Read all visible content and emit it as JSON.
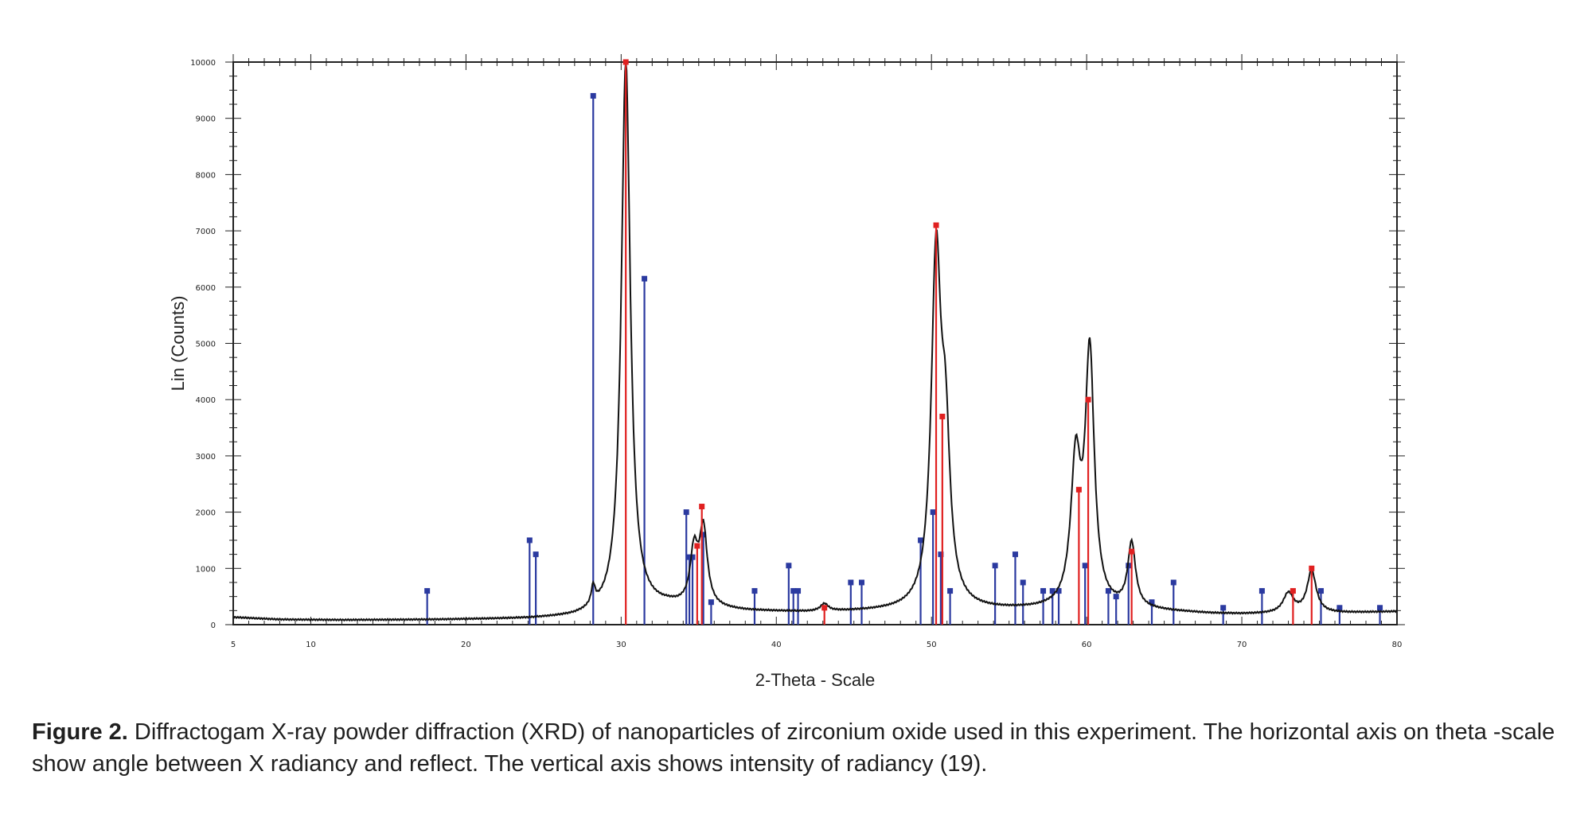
{
  "figure": {
    "caption_label": "Figure 2.",
    "caption_text": " Diffractogam X-ray powder diffraction (XRD) of nanoparticles of zirconium oxide used in this experiment. The horizontal axis on theta -scale show angle between X radiancy and reflect. The vertical axis shows intensity of radiancy (19)."
  },
  "chart_data": {
    "type": "line",
    "title": "",
    "xlabel": "2-Theta - Scale",
    "ylabel": "Lin (Counts)",
    "xlim": [
      5,
      80
    ],
    "ylim": [
      0,
      10000
    ],
    "x_ticks": [
      5,
      10,
      20,
      30,
      40,
      50,
      60,
      70,
      80
    ],
    "y_ticks": [
      0,
      1000,
      2000,
      3000,
      4000,
      5000,
      6000,
      7000,
      8000,
      9000,
      10000
    ],
    "grid": false,
    "legend": "none",
    "colors": {
      "pattern": "#111111",
      "blue_reference": "#2b3aa0",
      "red_reference": "#e02020",
      "axis": "#222222"
    },
    "pattern": {
      "baseline": [
        [
          5,
          130
        ],
        [
          8,
          90
        ],
        [
          12,
          80
        ],
        [
          18,
          85
        ],
        [
          24,
          100
        ],
        [
          27,
          120
        ],
        [
          29,
          180
        ],
        [
          33,
          300
        ],
        [
          38,
          230
        ],
        [
          42,
          210
        ],
        [
          47,
          230
        ],
        [
          56,
          250
        ],
        [
          64,
          240
        ],
        [
          68,
          190
        ],
        [
          70,
          180
        ],
        [
          76,
          200
        ],
        [
          80,
          230
        ]
      ],
      "peaks": [
        {
          "center": 28.2,
          "height": 330,
          "width": 0.15
        },
        {
          "center": 30.3,
          "height": 9800,
          "width": 0.35
        },
        {
          "center": 34.7,
          "height": 950,
          "width": 0.3
        },
        {
          "center": 35.3,
          "height": 1350,
          "width": 0.3
        },
        {
          "center": 43.1,
          "height": 130,
          "width": 0.3
        },
        {
          "center": 50.3,
          "height": 6100,
          "width": 0.38
        },
        {
          "center": 50.9,
          "height": 2600,
          "width": 0.35
        },
        {
          "center": 59.3,
          "height": 2500,
          "width": 0.38
        },
        {
          "center": 60.2,
          "height": 4450,
          "width": 0.35
        },
        {
          "center": 62.9,
          "height": 1150,
          "width": 0.3
        },
        {
          "center": 73.0,
          "height": 350,
          "width": 0.4
        },
        {
          "center": 74.5,
          "height": 750,
          "width": 0.35
        }
      ]
    },
    "blue_reference_peaks": [
      [
        17.5,
        600
      ],
      [
        24.1,
        1500
      ],
      [
        24.5,
        1250
      ],
      [
        28.2,
        9400
      ],
      [
        31.5,
        6150
      ],
      [
        34.2,
        2000
      ],
      [
        34.4,
        1200
      ],
      [
        34.6,
        1200
      ],
      [
        35.3,
        1600
      ],
      [
        35.8,
        400
      ],
      [
        38.6,
        600
      ],
      [
        40.8,
        1050
      ],
      [
        41.1,
        600
      ],
      [
        41.4,
        600
      ],
      [
        44.8,
        750
      ],
      [
        45.5,
        750
      ],
      [
        49.3,
        1500
      ],
      [
        50.1,
        2000
      ],
      [
        50.6,
        1250
      ],
      [
        51.2,
        600
      ],
      [
        54.1,
        1050
      ],
      [
        55.4,
        1250
      ],
      [
        55.9,
        750
      ],
      [
        57.2,
        600
      ],
      [
        57.8,
        600
      ],
      [
        58.2,
        600
      ],
      [
        59.9,
        1050
      ],
      [
        61.4,
        600
      ],
      [
        61.9,
        500
      ],
      [
        62.7,
        1050
      ],
      [
        64.2,
        400
      ],
      [
        65.6,
        750
      ],
      [
        68.8,
        300
      ],
      [
        71.3,
        600
      ],
      [
        75.1,
        600
      ],
      [
        76.3,
        300
      ],
      [
        78.9,
        300
      ]
    ],
    "red_reference_peaks": [
      [
        30.3,
        10000
      ],
      [
        34.9,
        1400
      ],
      [
        35.2,
        2100
      ],
      [
        43.1,
        300
      ],
      [
        50.3,
        7100
      ],
      [
        50.7,
        3700
      ],
      [
        59.5,
        2400
      ],
      [
        60.1,
        4000
      ],
      [
        62.9,
        1300
      ],
      [
        73.3,
        600
      ],
      [
        74.5,
        1000
      ]
    ]
  }
}
